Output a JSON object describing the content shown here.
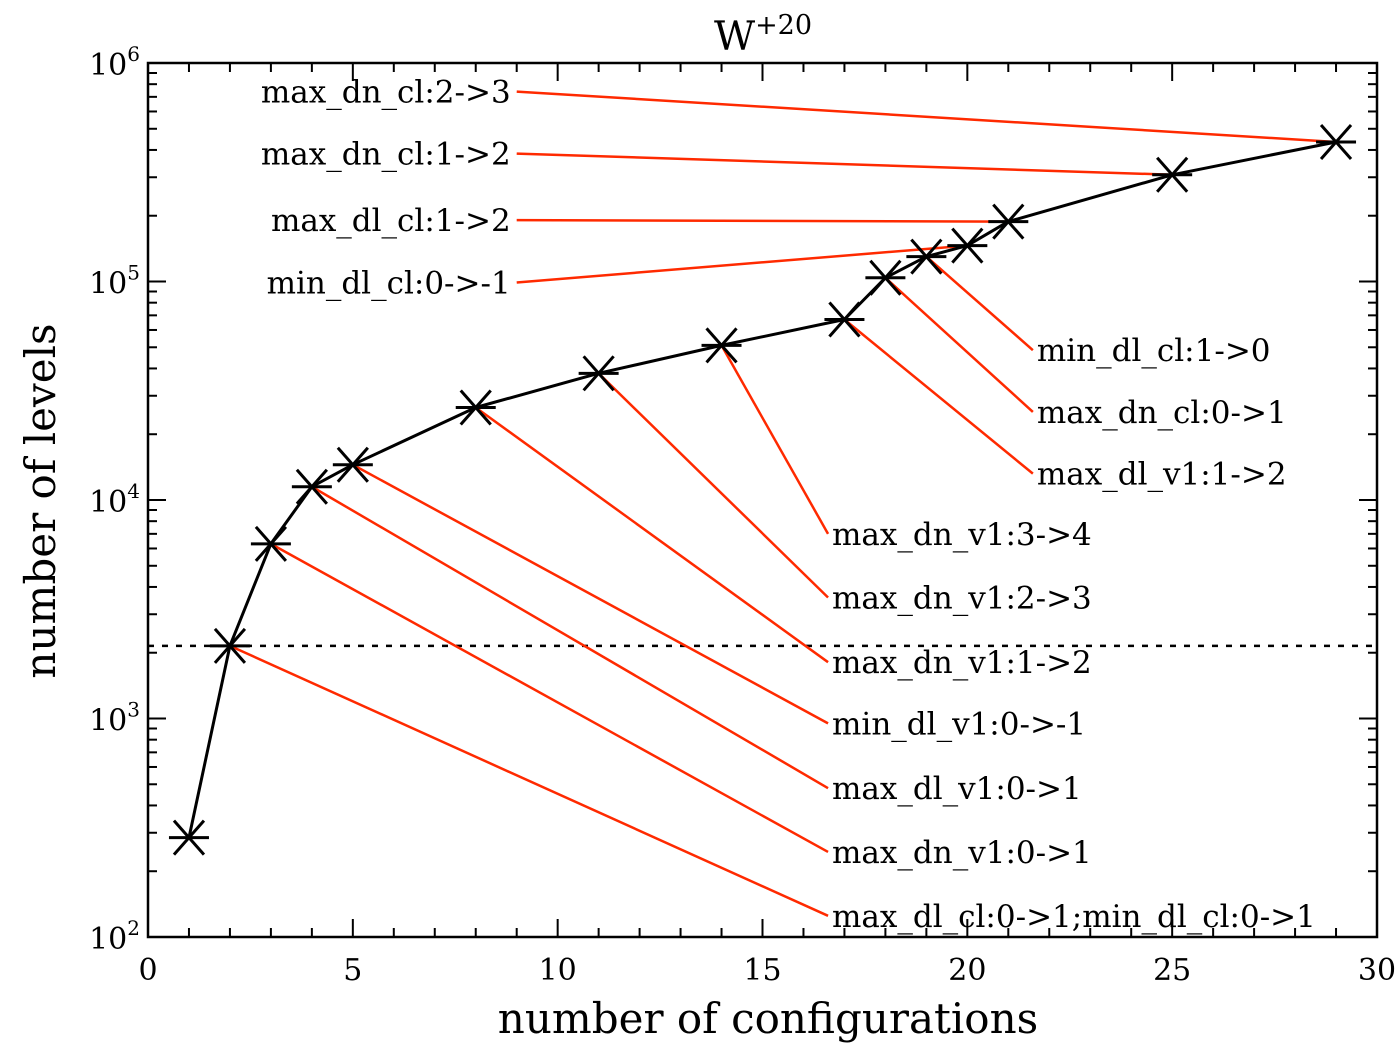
{
  "colors": {
    "series_line": "#000000",
    "leader_line": "#ff2a00",
    "axis": "#000000",
    "threshold_line": "#000000"
  },
  "chart_data": {
    "type": "line",
    "title": {
      "base": "W",
      "superscript": "+20"
    },
    "xlabel": "number of configurations",
    "ylabel": "number of levels",
    "xlim": [
      0,
      30
    ],
    "ylim": [
      100,
      1000000
    ],
    "y_scale": "log",
    "x_ticks": [
      {
        "value": 0,
        "label": "0"
      },
      {
        "value": 5,
        "label": "5"
      },
      {
        "value": 10,
        "label": "10"
      },
      {
        "value": 15,
        "label": "15"
      },
      {
        "value": 20,
        "label": "20"
      },
      {
        "value": 25,
        "label": "25"
      },
      {
        "value": 30,
        "label": "30"
      }
    ],
    "y_ticks": [
      {
        "value": 100,
        "base": "10",
        "exp": "2"
      },
      {
        "value": 1000,
        "base": "10",
        "exp": "3"
      },
      {
        "value": 10000,
        "base": "10",
        "exp": "4"
      },
      {
        "value": 100000,
        "base": "10",
        "exp": "5"
      },
      {
        "value": 1000000,
        "base": "10",
        "exp": "6"
      }
    ],
    "x_minor_step": 1,
    "series": [
      {
        "marker": "asterisk",
        "points": [
          {
            "x": 1,
            "y": 285
          },
          {
            "x": 2,
            "y": 2150
          },
          {
            "x": 3,
            "y": 6300
          },
          {
            "x": 4,
            "y": 11500
          },
          {
            "x": 5,
            "y": 14500
          },
          {
            "x": 8,
            "y": 26500
          },
          {
            "x": 11,
            "y": 38000
          },
          {
            "x": 14,
            "y": 51000
          },
          {
            "x": 17,
            "y": 67000
          },
          {
            "x": 18,
            "y": 104000
          },
          {
            "x": 19,
            "y": 130000
          },
          {
            "x": 20,
            "y": 146000
          },
          {
            "x": 21,
            "y": 188000
          },
          {
            "x": 25,
            "y": 308000
          },
          {
            "x": 29,
            "y": 435000
          }
        ]
      }
    ],
    "threshold_line": {
      "y": 2150,
      "style": "dotted"
    },
    "annotations": [
      {
        "text": "max_dn_cl:2->3",
        "point_x": 29,
        "point_y": 435000,
        "label_x": 9.0,
        "label_y": 740000,
        "anchor": "end"
      },
      {
        "text": "max_dn_cl:1->2",
        "point_x": 25,
        "point_y": 308000,
        "label_x": 9.0,
        "label_y": 385000,
        "anchor": "end"
      },
      {
        "text": "max_dl_cl:1->2",
        "point_x": 21,
        "point_y": 188000,
        "label_x": 9.0,
        "label_y": 191000,
        "anchor": "end"
      },
      {
        "text": "min_dl_cl:0->-1",
        "point_x": 20,
        "point_y": 146000,
        "label_x": 9.0,
        "label_y": 99000,
        "anchor": "end"
      },
      {
        "text": "min_dl_cl:1->0",
        "point_x": 19,
        "point_y": 130000,
        "label_x": 21.6,
        "label_y": 48500,
        "anchor": "start"
      },
      {
        "text": "max_dn_cl:0->1",
        "point_x": 18,
        "point_y": 104000,
        "label_x": 21.6,
        "label_y": 25300,
        "anchor": "start"
      },
      {
        "text": "max_dl_v1:1->2",
        "point_x": 17,
        "point_y": 67000,
        "label_x": 21.6,
        "label_y": 13200,
        "anchor": "start"
      },
      {
        "text": "max_dn_v1:3->4",
        "point_x": 14,
        "point_y": 51000,
        "label_x": 16.6,
        "label_y": 7000,
        "anchor": "start"
      },
      {
        "text": "max_dn_v1:2->3",
        "point_x": 11,
        "point_y": 38000,
        "label_x": 16.6,
        "label_y": 3580,
        "anchor": "start"
      },
      {
        "text": "max_dn_v1:1->2",
        "point_x": 8,
        "point_y": 26500,
        "label_x": 16.6,
        "label_y": 1810,
        "anchor": "start"
      },
      {
        "text": "min_dl_v1:0->-1",
        "point_x": 5,
        "point_y": 14500,
        "label_x": 16.6,
        "label_y": 950,
        "anchor": "start"
      },
      {
        "text": "max_dl_v1:0->1",
        "point_x": 4,
        "point_y": 11500,
        "label_x": 16.6,
        "label_y": 480,
        "anchor": "start"
      },
      {
        "text": "max_dn_v1:0->1",
        "point_x": 3,
        "point_y": 6300,
        "label_x": 16.6,
        "label_y": 245,
        "anchor": "start"
      },
      {
        "text": "max_dl_cl:0->1;min_dl_cl:0->1",
        "point_x": 2,
        "point_y": 2150,
        "label_x": 16.6,
        "label_y": 125,
        "anchor": "start"
      }
    ]
  }
}
